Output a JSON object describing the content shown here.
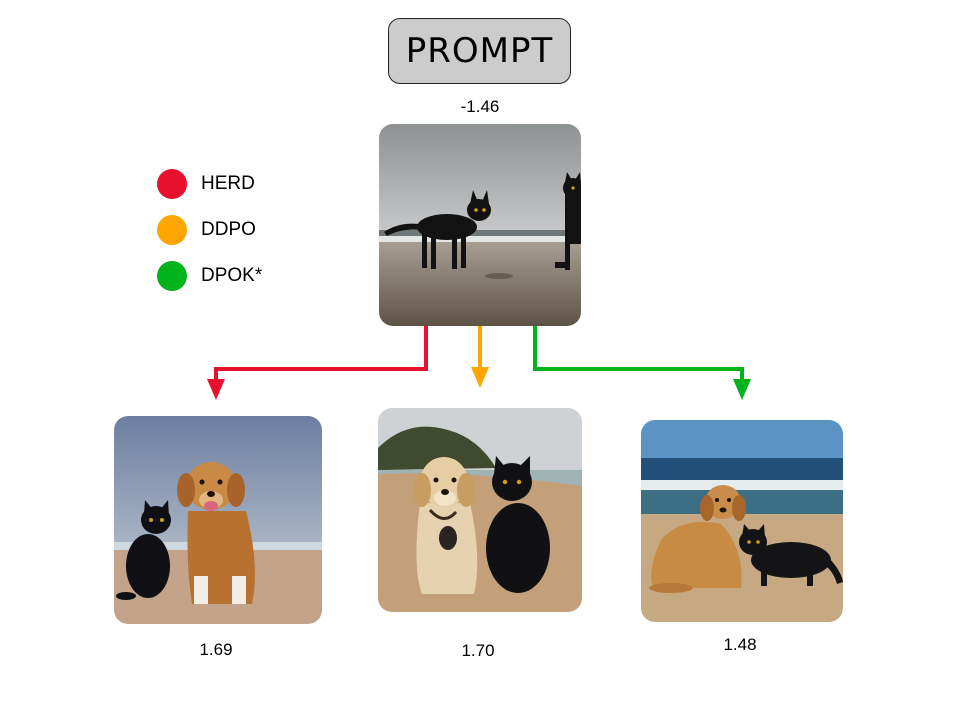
{
  "prompt": {
    "label": "PROMPT"
  },
  "source": {
    "score": "-1.46"
  },
  "legend": [
    {
      "label": "HERD",
      "color": "#e8112d"
    },
    {
      "label": "DDPO",
      "color": "#ffa500"
    },
    {
      "label": "DPOK*",
      "color": "#00b31b"
    }
  ],
  "outputs": [
    {
      "method": "HERD",
      "score": "1.69",
      "color": "#e8112d"
    },
    {
      "method": "DDPO",
      "score": "1.70",
      "color": "#ffa500"
    },
    {
      "method": "DPOK*",
      "score": "1.48",
      "color": "#00b31b"
    }
  ]
}
